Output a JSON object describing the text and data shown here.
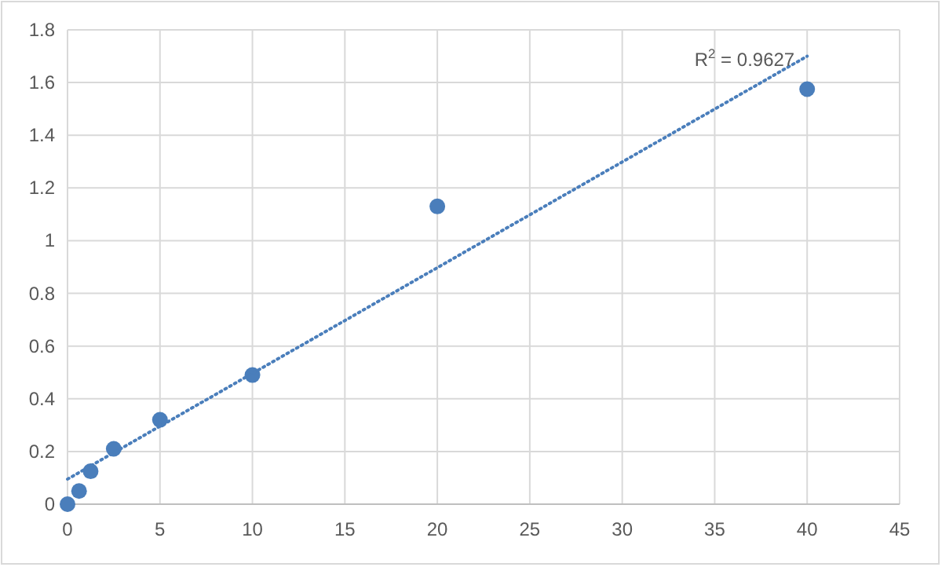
{
  "chart_data": {
    "type": "scatter",
    "x": [
      0,
      0.625,
      1.25,
      2.5,
      5,
      10,
      20,
      40
    ],
    "series": [
      {
        "type": "scatter",
        "color": "#4a7ebb",
        "marker": "circle",
        "values": [
          0,
          0.05,
          0.125,
          0.21,
          0.32,
          0.49,
          1.13,
          1.575
        ]
      },
      {
        "type": "line",
        "color": "#4a7ebb",
        "marker": "none",
        "line_style": "dotted",
        "x": [
          0,
          40
        ],
        "values": [
          0.095,
          1.7
        ]
      }
    ],
    "xlim": [
      0,
      45
    ],
    "xticks": [
      0,
      5,
      10,
      15,
      20,
      25,
      30,
      35,
      40,
      45
    ],
    "ylim": [
      0,
      1.8
    ],
    "yticks": [
      {
        "value": 0,
        "label": "0"
      },
      {
        "value": 0.2,
        "label": "0.2"
      },
      {
        "value": 0.4,
        "label": "0.4"
      },
      {
        "value": 0.6,
        "label": "0.6"
      },
      {
        "value": 0.8,
        "label": "0.8"
      },
      {
        "value": 1,
        "label": "1"
      },
      {
        "value": 1.2,
        "label": "1.2"
      },
      {
        "value": 1.4,
        "label": "1.4"
      },
      {
        "value": 1.6,
        "label": "1.6"
      },
      {
        "value": 1.8,
        "label": "1.8"
      }
    ],
    "grid": true,
    "annotations": [
      "R$^{2}$ = 0.9627"
    ]
  }
}
